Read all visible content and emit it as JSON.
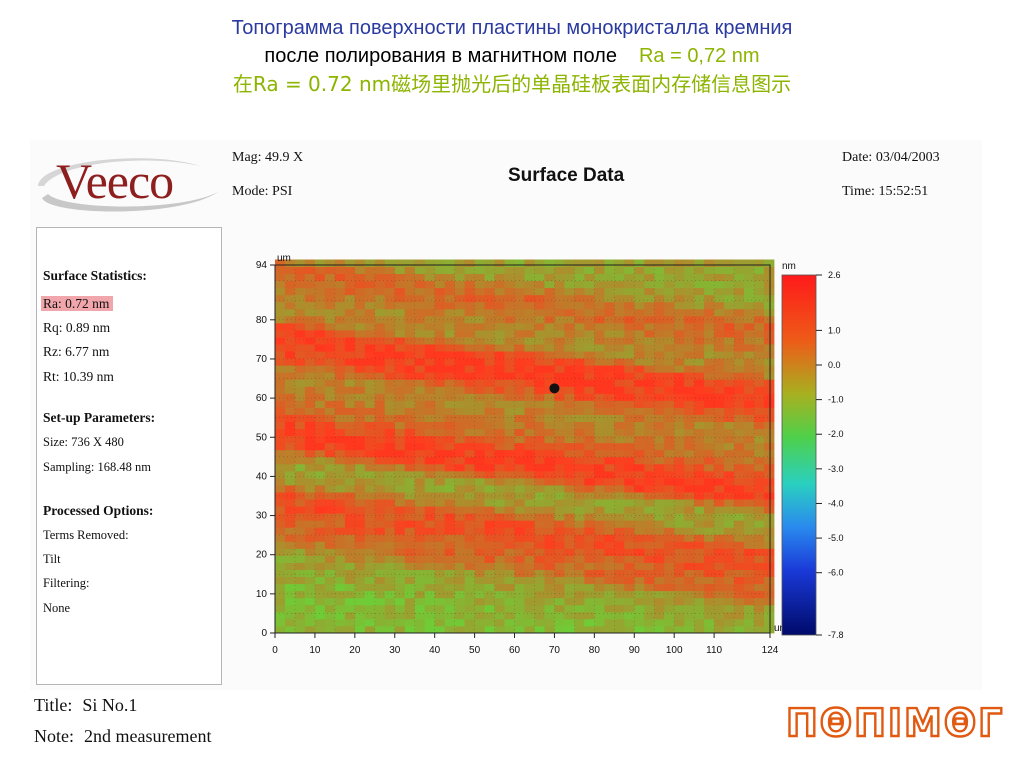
{
  "header": {
    "line1": "Топограмма поверхности пластины монокристалла кремния",
    "line2_main": "после полирования в магнитном поле",
    "line2_ra": "Ra = 0,72 nm",
    "line3": "在Ra = 0.72 nm磁场里抛光后的单晶硅板表面内存储信息图示"
  },
  "logo": {
    "text": "Veeco",
    "icon": "veeco-swoosh-logo"
  },
  "report": {
    "title": "Surface Data",
    "mag": "Mag:  49.9 X",
    "mode": "Mode:  PSI",
    "date": "Date:  03/04/2003",
    "time": "Time:  15:52:51"
  },
  "stats": {
    "surface_heading": "Surface Statistics:",
    "ra": "Ra:  0.72 nm",
    "rq": "Rq:  0.89 nm",
    "rz": "Rz:  6.77 nm",
    "rt": "Rt:  10.39 nm",
    "setup_heading": "Set-up Parameters:",
    "size": "Size: 736 X 480",
    "sampling": "Sampling:  168.48 nm",
    "processed_heading": "Processed Options:",
    "terms_removed": "Terms Removed:",
    "tilt": "Tilt",
    "filtering": "Filtering:",
    "none": "None"
  },
  "footer": {
    "title_label": "Title:",
    "title_value": "Si No.1",
    "note_label": "Note:",
    "note_value": "2nd measurement"
  },
  "brand": {
    "text": "ΠΘΠΙΜΘΓ",
    "icon": "nanimar-logo"
  },
  "colors": {
    "heading_blue": "#2a3aa0",
    "heading_green": "#8cb400",
    "brand_orange": "#e05a12",
    "ra_highlight": "#f1a6ac"
  },
  "chart_data": {
    "type": "heatmap",
    "title": "Surface Data",
    "x_unit": "um",
    "y_unit": "um",
    "colorbar_unit": "nm",
    "xlim": [
      0,
      124
    ],
    "ylim": [
      0,
      94
    ],
    "x_ticks": [
      0,
      10,
      20,
      30,
      40,
      50,
      60,
      70,
      80,
      90,
      100,
      110,
      124
    ],
    "y_ticks": [
      0,
      10,
      20,
      30,
      40,
      50,
      60,
      70,
      80,
      94
    ],
    "colorbar_ticks": [
      2.6,
      1.0,
      0.0,
      -1.0,
      -2.0,
      -3.0,
      -4.0,
      -5.0,
      -6.0,
      -7.8
    ],
    "colorbar_range": [
      -7.8,
      2.6
    ],
    "grid": true,
    "height_bands": [
      {
        "y_center": 92,
        "level": 0.3
      },
      {
        "y_center": 84,
        "level": 0.7
      },
      {
        "y_center": 77,
        "level": 0.45
      },
      {
        "y_center": 66,
        "level": 0.95
      },
      {
        "y_center": 57,
        "level": 0.5
      },
      {
        "y_center": 50,
        "level": 0.6
      },
      {
        "y_center": 44,
        "level": 1.0
      },
      {
        "y_center": 34,
        "level": 0.3
      },
      {
        "y_center": 26,
        "level": 0.85
      },
      {
        "y_center": 19,
        "level": 0.7
      },
      {
        "y_center": 11,
        "level": 0.3
      },
      {
        "y_center": 4,
        "level": 0.15
      }
    ],
    "defect_point": {
      "x": 70,
      "y": 62.5
    }
  }
}
